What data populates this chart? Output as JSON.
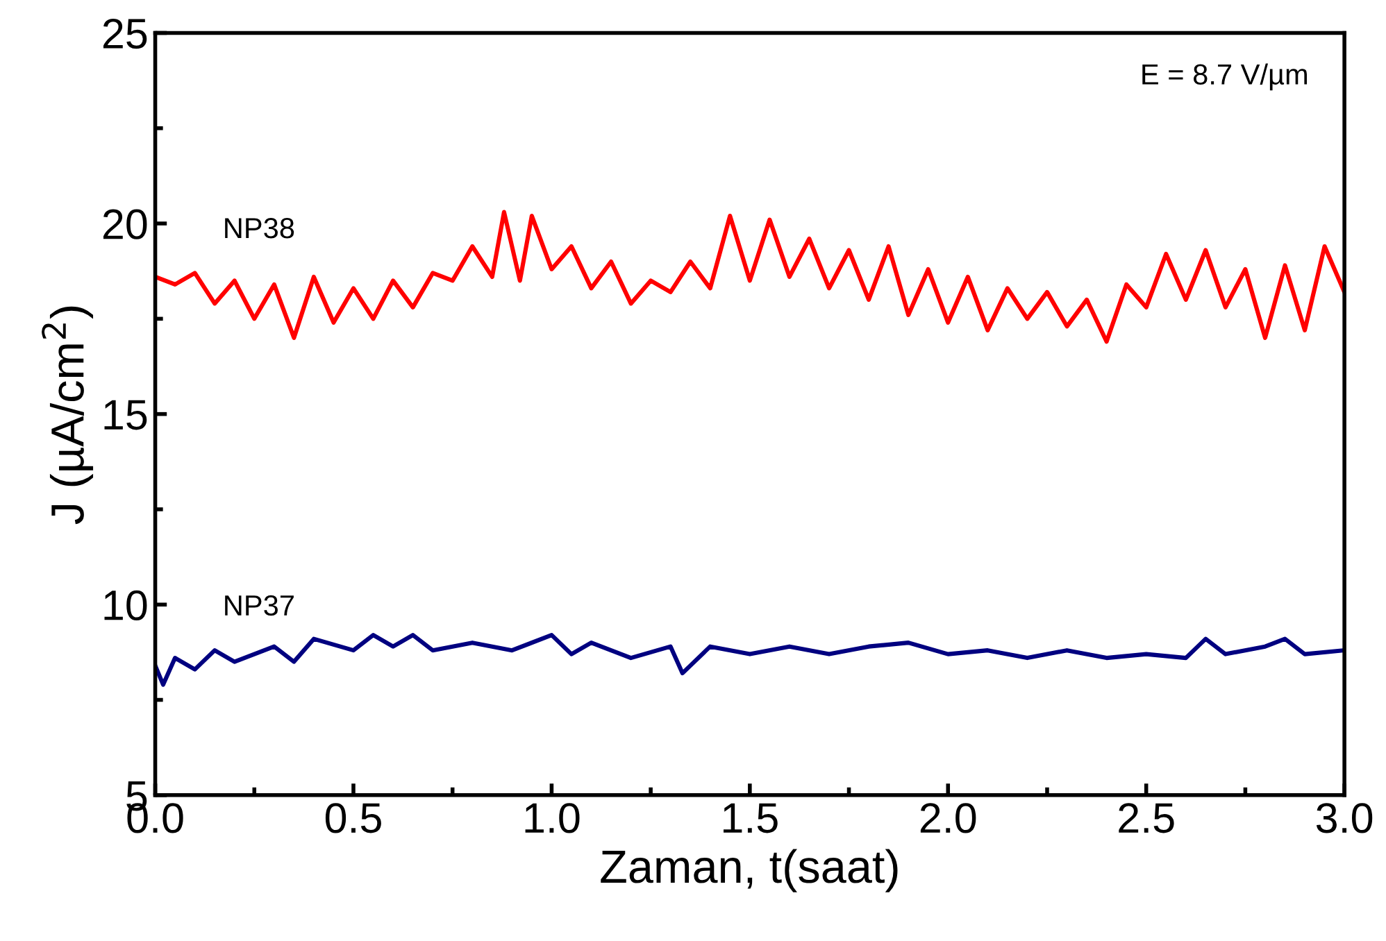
{
  "chart_data": {
    "type": "line",
    "xlabel": "Zaman, t(saat)",
    "ylabel": "J (µA/cm$^{2}$)",
    "xlim": [
      0,
      3
    ],
    "ylim": [
      5,
      25
    ],
    "xticks": [
      {
        "value": 0,
        "label": "0.0"
      },
      {
        "value": 0.5,
        "label": "0.5"
      },
      {
        "value": 1,
        "label": "1.0"
      },
      {
        "value": 1.5,
        "label": "1.5"
      },
      {
        "value": 2,
        "label": "2.0"
      },
      {
        "value": 2.5,
        "label": "2.5"
      },
      {
        "value": 3,
        "label": "3.0"
      }
    ],
    "yticks": [
      5,
      10,
      15,
      20,
      25
    ],
    "grid": false,
    "legend": false,
    "annotations": [
      "E = 8.7 V/µm"
    ],
    "series": [
      {
        "name": "NP38",
        "color": "#ff0000",
        "x": [
          0,
          0.05,
          0.1,
          0.15,
          0.2,
          0.25,
          0.3,
          0.35,
          0.4,
          0.45,
          0.5,
          0.55,
          0.6,
          0.65,
          0.7,
          0.75,
          0.8,
          0.85,
          0.88,
          0.92,
          0.95,
          1.0,
          1.05,
          1.1,
          1.15,
          1.2,
          1.25,
          1.3,
          1.35,
          1.4,
          1.45,
          1.5,
          1.55,
          1.6,
          1.65,
          1.7,
          1.75,
          1.8,
          1.85,
          1.9,
          1.95,
          2.0,
          2.05,
          2.1,
          2.15,
          2.2,
          2.25,
          2.3,
          2.35,
          2.4,
          2.45,
          2.5,
          2.55,
          2.6,
          2.65,
          2.7,
          2.75,
          2.8,
          2.85,
          2.9,
          2.95,
          3.0
        ],
        "values": [
          18.6,
          18.4,
          18.7,
          17.9,
          18.5,
          17.5,
          18.4,
          17.0,
          18.6,
          17.4,
          18.3,
          17.5,
          18.5,
          17.8,
          18.7,
          18.5,
          19.4,
          18.6,
          20.3,
          18.5,
          20.2,
          18.8,
          19.4,
          18.3,
          19.0,
          17.9,
          18.5,
          18.2,
          19.0,
          18.3,
          20.2,
          18.5,
          20.1,
          18.6,
          19.6,
          18.3,
          19.3,
          18.0,
          19.4,
          17.6,
          18.8,
          17.4,
          18.6,
          17.2,
          18.3,
          17.5,
          18.2,
          17.3,
          18.0,
          16.9,
          18.4,
          17.8,
          19.2,
          18.0,
          19.3,
          17.8,
          18.8,
          17.0,
          18.9,
          17.2,
          19.4,
          18.2
        ]
      },
      {
        "name": "NP37",
        "color": "#000080",
        "x": [
          0,
          0.02,
          0.05,
          0.1,
          0.15,
          0.2,
          0.3,
          0.35,
          0.4,
          0.5,
          0.55,
          0.6,
          0.65,
          0.7,
          0.8,
          0.9,
          1.0,
          1.05,
          1.1,
          1.2,
          1.3,
          1.33,
          1.4,
          1.5,
          1.6,
          1.7,
          1.8,
          1.9,
          2.0,
          2.1,
          2.2,
          2.3,
          2.4,
          2.5,
          2.6,
          2.65,
          2.7,
          2.8,
          2.85,
          2.9,
          3.0
        ],
        "values": [
          8.4,
          7.9,
          8.6,
          8.3,
          8.8,
          8.5,
          8.9,
          8.5,
          9.1,
          8.8,
          9.2,
          8.9,
          9.2,
          8.8,
          9.0,
          8.8,
          9.2,
          8.7,
          9.0,
          8.6,
          8.9,
          8.2,
          8.9,
          8.7,
          8.9,
          8.7,
          8.9,
          9.0,
          8.7,
          8.8,
          8.6,
          8.8,
          8.6,
          8.7,
          8.6,
          9.1,
          8.7,
          8.9,
          9.1,
          8.7,
          8.8
        ]
      }
    ]
  }
}
